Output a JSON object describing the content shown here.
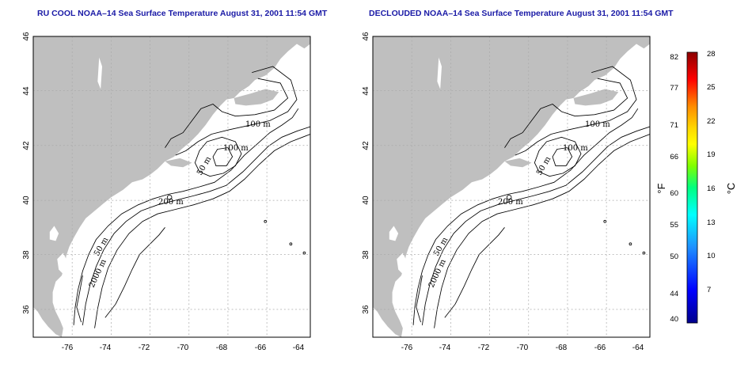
{
  "maps": [
    {
      "title": "RU COOL NOAA–14 Sea Surface Temperature August 31, 2001 11:54 GMT",
      "x_ticks": [
        "-76",
        "-74",
        "-72",
        "-70",
        "-68",
        "-66",
        "-64"
      ],
      "y_ticks": [
        "46",
        "44",
        "42",
        "40",
        "38",
        "36"
      ],
      "contour_labels": [
        "100 m",
        "100 m",
        "50 m",
        "200 m",
        "50 m",
        "2000 m"
      ]
    },
    {
      "title": "DECLOUDED NOAA–14 Sea Surface Temperature August 31, 2001 11:54 GMT",
      "x_ticks": [
        "-76",
        "-74",
        "-72",
        "-70",
        "-68",
        "-66",
        "-64"
      ],
      "y_ticks": [
        "46",
        "44",
        "42",
        "40",
        "38",
        "36"
      ],
      "contour_labels": [
        "100 m",
        "100 m",
        "50 m",
        "200 m",
        "50 m",
        "2000 m"
      ]
    }
  ],
  "colorbar": {
    "fahrenheit_ticks": [
      "82",
      "77",
      "71",
      "66",
      "60",
      "55",
      "50",
      "44",
      "40"
    ],
    "celsius_ticks": [
      "28",
      "25",
      "22",
      "19",
      "16",
      "13",
      "10",
      "7"
    ],
    "fahrenheit_unit": "°F",
    "celsius_unit": "°C",
    "colors": [
      "#8b0000",
      "#ff0000",
      "#ff8c00",
      "#ffd700",
      "#ffff00",
      "#7fff00",
      "#00ff7f",
      "#00ffff",
      "#1e90ff",
      "#0000ff",
      "#00008b"
    ]
  }
}
